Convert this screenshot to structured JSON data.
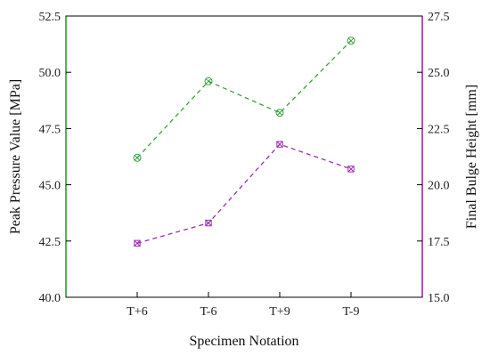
{
  "chart_data": {
    "type": "line",
    "x_title": "Specimen Notation",
    "categories": [
      "T+6",
      "T-6",
      "T+9",
      "T-9"
    ],
    "y_left": {
      "title": "Peak Pressure Value [MPa]",
      "range": [
        40.0,
        52.5
      ],
      "ticks": [
        "40.0",
        "42.5",
        "45.0",
        "47.5",
        "50.0",
        "52.5"
      ],
      "axis_color": "#1a9a1a"
    },
    "y_right": {
      "title": "Final Bulge Height [mm]",
      "range": [
        15.0,
        27.5
      ],
      "ticks": [
        "15.0",
        "17.5",
        "20.0",
        "22.5",
        "25.0",
        "27.5"
      ],
      "axis_color": "#8b1fa0"
    },
    "series": [
      {
        "axis": "left",
        "values": [
          46.2,
          49.6,
          48.2,
          51.4
        ],
        "color": "#3aa33a",
        "line_style": "dashed",
        "marker": "circle-x"
      },
      {
        "axis": "right",
        "values": [
          17.4,
          18.3,
          21.8,
          20.7
        ],
        "color": "#9b2fb0",
        "line_style": "dashed",
        "marker": "square-x"
      }
    ],
    "grid": false
  }
}
